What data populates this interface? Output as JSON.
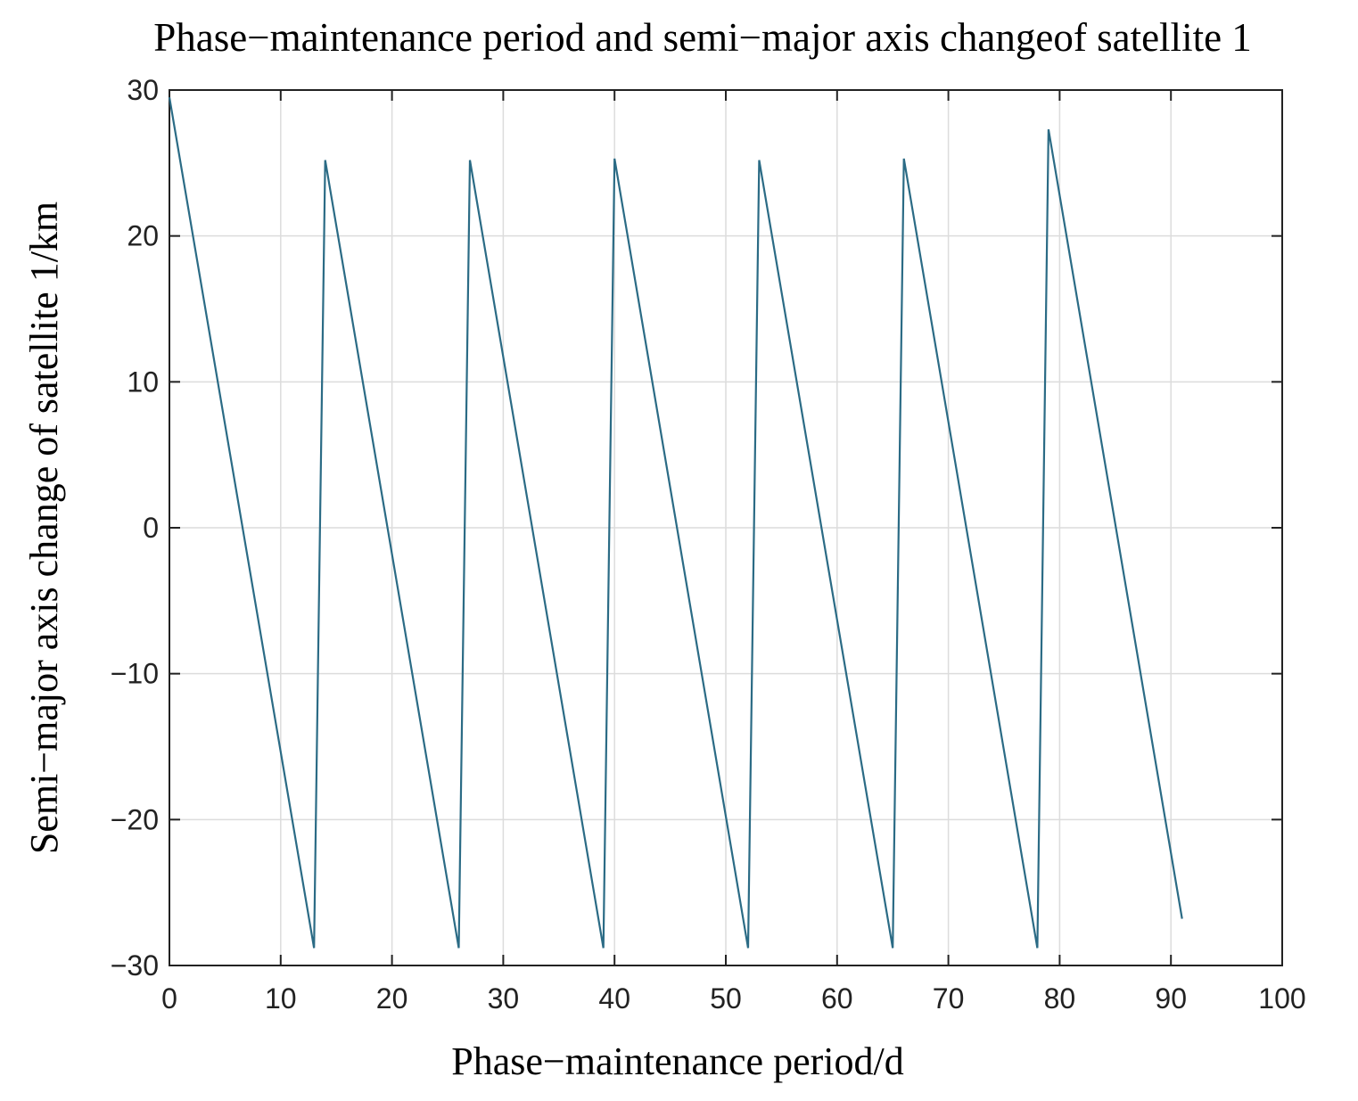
{
  "chart_data": {
    "type": "line",
    "title": "Phase−maintenance period and semi−major axis  changeof satellite 1",
    "xlabel": "Phase−maintenance period/d",
    "ylabel": "Semi−major axis change of satellite 1/km",
    "xlim": [
      0,
      100
    ],
    "ylim": [
      -30,
      30
    ],
    "xticks": [
      0,
      10,
      20,
      30,
      40,
      50,
      60,
      70,
      80,
      90,
      100
    ],
    "yticks": [
      -30,
      -20,
      -10,
      0,
      10,
      20,
      30
    ],
    "xtick_labels": [
      "0",
      "10",
      "20",
      "30",
      "40",
      "50",
      "60",
      "70",
      "80",
      "90",
      "100"
    ],
    "ytick_labels": [
      "−30",
      "−20",
      "−10",
      "0",
      "10",
      "20",
      "30"
    ],
    "grid": true,
    "series": [
      {
        "color": "#2b6b85",
        "x": [
          0,
          13,
          14,
          26,
          27,
          39,
          40,
          52,
          53,
          65,
          66,
          78,
          79,
          91
        ],
        "y": [
          29.5,
          -28.8,
          25.2,
          -28.8,
          25.2,
          -28.8,
          25.3,
          -28.8,
          25.2,
          -28.8,
          25.3,
          -28.8,
          27.3,
          -26.8
        ]
      }
    ]
  }
}
